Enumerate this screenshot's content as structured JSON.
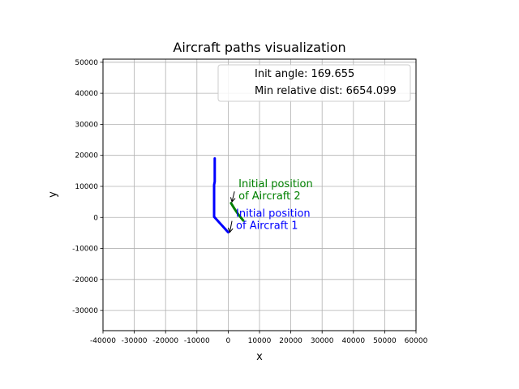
{
  "chart_data": {
    "type": "line",
    "title": "Aircraft paths visualization",
    "xlabel": "x",
    "ylabel": "y",
    "xlim": [
      -40000,
      60000
    ],
    "ylim": [
      -36500,
      51000
    ],
    "xticks": [
      -40000,
      -30000,
      -20000,
      -10000,
      0,
      10000,
      20000,
      30000,
      40000,
      50000,
      60000
    ],
    "yticks": [
      -30000,
      -20000,
      -10000,
      0,
      10000,
      20000,
      30000,
      40000,
      50000
    ],
    "grid": true,
    "legend": {
      "placement": "top-right",
      "entries": [
        "Init angle: 169.655",
        "Min relative dist: 6654.099"
      ]
    },
    "series": [
      {
        "color": "#0000ff",
        "points": [
          [
            0,
            -4800
          ],
          [
            -4500,
            200
          ],
          [
            -4500,
            10500
          ],
          [
            -4300,
            11500
          ],
          [
            -4300,
            19000
          ]
        ]
      },
      {
        "color": "#008000",
        "points": [
          [
            900,
            4600
          ],
          [
            2000,
            2800
          ],
          [
            3200,
            1000
          ],
          [
            4800,
            -1000
          ]
        ]
      }
    ],
    "annotations": [
      {
        "lines": [
          "Initial position",
          "of Aircraft 2"
        ],
        "color": "#008000",
        "text_at": [
          3300,
          6800
        ],
        "arrow_to": [
          1200,
          5000
        ]
      },
      {
        "lines": [
          "Initial position",
          "of Aircraft 1"
        ],
        "color": "#0000ff",
        "text_at": [
          2500,
          -2700
        ],
        "arrow_to": [
          500,
          -4800
        ]
      }
    ]
  }
}
